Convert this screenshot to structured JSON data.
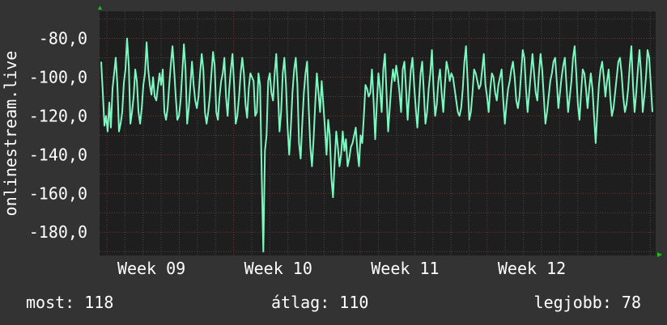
{
  "colors": {
    "background": "#333333",
    "plot_background": "#1e1e1e",
    "grid_minor": "#4a4a4a",
    "grid_major": "#7a3232",
    "line": "#7ff5c0",
    "axis_arrow": "#19c219",
    "text": "#ffffff"
  },
  "chart_data": {
    "type": "line",
    "ylabel": "onlinestream.live",
    "ylim": [
      -192,
      -66
    ],
    "y_ticks": [
      "-80,0",
      "-100,0",
      "-120,0",
      "-140,0",
      "-160,0",
      "-180,0"
    ],
    "y_tick_values": [
      -80,
      -100,
      -120,
      -140,
      -160,
      -180
    ],
    "x_ticks": [
      "Week 09",
      "Week 10",
      "Week 11",
      "Week 12"
    ],
    "x_tick_positions_days": [
      0,
      7,
      14,
      21
    ],
    "xlim_days": [
      -0.4,
      30.3
    ],
    "grid": true,
    "series": [
      {
        "values": [
          -92,
          -108,
          -125,
          -120,
          -128,
          -113,
          -126,
          -106,
          -98,
          -90,
          -104,
          -128,
          -124,
          -118,
          -103,
          -96,
          -80,
          -94,
          -124,
          -118,
          -110,
          -96,
          -102,
          -118,
          -124,
          -116,
          -104,
          -98,
          -82,
          -96,
          -104,
          -109,
          -100,
          -110,
          -112,
          -105,
          -98,
          -104,
          -96,
          -118,
          -122,
          -116,
          -104,
          -93,
          -84,
          -96,
          -110,
          -122,
          -120,
          -112,
          -98,
          -83,
          -96,
          -124,
          -116,
          -104,
          -92,
          -104,
          -112,
          -116,
          -110,
          -98,
          -88,
          -96,
          -118,
          -124,
          -118,
          -110,
          -98,
          -87,
          -94,
          -118,
          -122,
          -110,
          -102,
          -98,
          -90,
          -110,
          -120,
          -106,
          -96,
          -88,
          -104,
          -124,
          -120,
          -110,
          -98,
          -90,
          -98,
          -114,
          -121,
          -106,
          -98,
          -100,
          -102,
          -120,
          -118,
          -98,
          -104,
          -150,
          -190,
          -138,
          -130,
          -102,
          -98,
          -108,
          -112,
          -98,
          -88,
          -106,
          -128,
          -118,
          -98,
          -90,
          -104,
          -126,
          -140,
          -126,
          -108,
          -96,
          -90,
          -104,
          -134,
          -142,
          -124,
          -108,
          -98,
          -92,
          -116,
          -136,
          -146,
          -132,
          -114,
          -98,
          -108,
          -118,
          -102,
          -114,
          -126,
          -140,
          -122,
          -130,
          -152,
          -162,
          -144,
          -128,
          -136,
          -146,
          -140,
          -128,
          -138,
          -132,
          -146,
          -142,
          -136,
          -134,
          -130,
          -126,
          -138,
          -146,
          -130,
          -134,
          -120,
          -104,
          -106,
          -110,
          -108,
          -96,
          -112,
          -132,
          -114,
          -98,
          -106,
          -118,
          -96,
          -88,
          -108,
          -128,
          -116,
          -104,
          -96,
          -102,
          -94,
          -100,
          -108,
          -118,
          -96,
          -92,
          -106,
          -122,
          -108,
          -96,
          -90,
          -104,
          -116,
          -126,
          -112,
          -98,
          -92,
          -108,
          -124,
          -118,
          -106,
          -98,
          -86,
          -106,
          -120,
          -114,
          -102,
          -96,
          -108,
          -118,
          -104,
          -92,
          -96,
          -102,
          -98,
          -100,
          -106,
          -112,
          -118,
          -120,
          -116,
          -106,
          -92,
          -84,
          -102,
          -122,
          -118,
          -108,
          -96,
          -98,
          -102,
          -106,
          -104,
          -96,
          -88,
          -104,
          -110,
          -118,
          -106,
          -98,
          -100,
          -108,
          -112,
          -104,
          -100,
          -96,
          -112,
          -124,
          -114,
          -106,
          -102,
          -96,
          -92,
          -100,
          -112,
          -116,
          -110,
          -98,
          -86,
          -90,
          -106,
          -118,
          -108,
          -98,
          -88,
          -98,
          -108,
          -112,
          -98,
          -88,
          -96,
          -110,
          -124,
          -118,
          -110,
          -102,
          -98,
          -92,
          -90,
          -102,
          -116,
          -108,
          -100,
          -94,
          -90,
          -104,
          -118,
          -110,
          -102,
          -90,
          -84,
          -98,
          -114,
          -122,
          -108,
          -96,
          -98,
          -106,
          -116,
          -106,
          -98,
          -106,
          -120,
          -134,
          -118,
          -104,
          -96,
          -92,
          -100,
          -110,
          -102,
          -96,
          -110,
          -120,
          -116,
          -108,
          -100,
          -92,
          -90,
          -98,
          -110,
          -118,
          -114,
          -106,
          -94,
          -84,
          -104,
          -118,
          -108,
          -96,
          -86,
          -98,
          -118,
          -110,
          -100,
          -86,
          -90,
          -104,
          -118
        ],
        "color": "#7ff5c0"
      }
    ]
  },
  "stats": {
    "current": "most: 118",
    "average": "átlag: 110",
    "best": "legjobb: 78"
  }
}
